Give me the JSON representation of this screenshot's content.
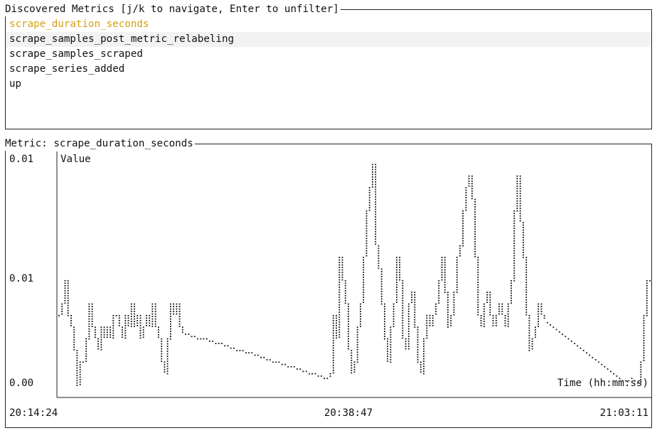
{
  "metrics_panel": {
    "title": "Discovered Metrics [j/k to navigate, Enter to unfilter]",
    "items": [
      {
        "label": "scrape_duration_seconds",
        "selected": true
      },
      {
        "label": "scrape_samples_post_metric_relabeling",
        "hover": true
      },
      {
        "label": "scrape_samples_scraped"
      },
      {
        "label": "scrape_series_added"
      },
      {
        "label": "up"
      }
    ],
    "selected_color": "#d4a012"
  },
  "chart_panel": {
    "title": "Metric: scrape_duration_seconds"
  },
  "chart_data": {
    "type": "line",
    "ylabel": "Value",
    "xlabel": "Time (hh:mm:ss)",
    "y_ticks": [
      "0.01",
      "0.01",
      "0.00"
    ],
    "x_ticks": [
      "20:14:24",
      "20:38:47",
      "21:03:11"
    ],
    "ylim": [
      0,
      1
    ],
    "series": [
      {
        "values": [
          0.3,
          0.35,
          0.45,
          0.3,
          0.25,
          0.15,
          0.0,
          0.1,
          0.1,
          0.2,
          0.35,
          0.25,
          0.2,
          0.15,
          0.25,
          0.2,
          0.25,
          0.2,
          0.3,
          0.3,
          0.25,
          0.2,
          0.3,
          0.25,
          0.35,
          0.25,
          0.3,
          0.2,
          0.25,
          0.3,
          0.25,
          0.35,
          0.25,
          0.2,
          0.1,
          0.05,
          0.2,
          0.35,
          0.3,
          0.35,
          0.25,
          0.22,
          0.22,
          0.22,
          0.21,
          0.21,
          0.2,
          0.2,
          0.2,
          0.2,
          0.19,
          0.19,
          0.18,
          0.18,
          0.18,
          0.17,
          0.17,
          0.16,
          0.16,
          0.15,
          0.15,
          0.15,
          0.14,
          0.14,
          0.14,
          0.13,
          0.13,
          0.12,
          0.12,
          0.11,
          0.11,
          0.1,
          0.1,
          0.1,
          0.09,
          0.09,
          0.08,
          0.08,
          0.08,
          0.07,
          0.07,
          0.06,
          0.06,
          0.05,
          0.05,
          0.05,
          0.04,
          0.04,
          0.03,
          0.03,
          0.05,
          0.3,
          0.2,
          0.55,
          0.45,
          0.35,
          0.15,
          0.05,
          0.1,
          0.25,
          0.35,
          0.55,
          0.75,
          0.85,
          0.95,
          0.6,
          0.5,
          0.35,
          0.2,
          0.1,
          0.25,
          0.35,
          0.55,
          0.45,
          0.2,
          0.15,
          0.35,
          0.4,
          0.25,
          0.1,
          0.05,
          0.2,
          0.3,
          0.25,
          0.3,
          0.35,
          0.45,
          0.55,
          0.4,
          0.25,
          0.3,
          0.4,
          0.55,
          0.6,
          0.75,
          0.85,
          0.9,
          0.8,
          0.55,
          0.3,
          0.25,
          0.35,
          0.4,
          0.3,
          0.25,
          0.3,
          0.35,
          0.3,
          0.25,
          0.35,
          0.45,
          0.75,
          0.9,
          0.7,
          0.55,
          0.3,
          0.15,
          0.2,
          0.25,
          0.35,
          0.3,
          0.28,
          0.27,
          0.26,
          0.25,
          0.24,
          0.23,
          0.22,
          0.21,
          0.2,
          0.19,
          0.18,
          0.17,
          0.16,
          0.15,
          0.14,
          0.13,
          0.12,
          0.11,
          0.1,
          0.09,
          0.08,
          0.07,
          0.06,
          0.05,
          0.04,
          0.03,
          0.02,
          0.02,
          0.02,
          0.03,
          0.02,
          0.01,
          0.1,
          0.3,
          0.45,
          0.45
        ]
      }
    ]
  },
  "colors": {
    "border": "#222222",
    "text": "#111111",
    "accent": "#d4a012",
    "row_highlight": "#f2f2f2"
  }
}
